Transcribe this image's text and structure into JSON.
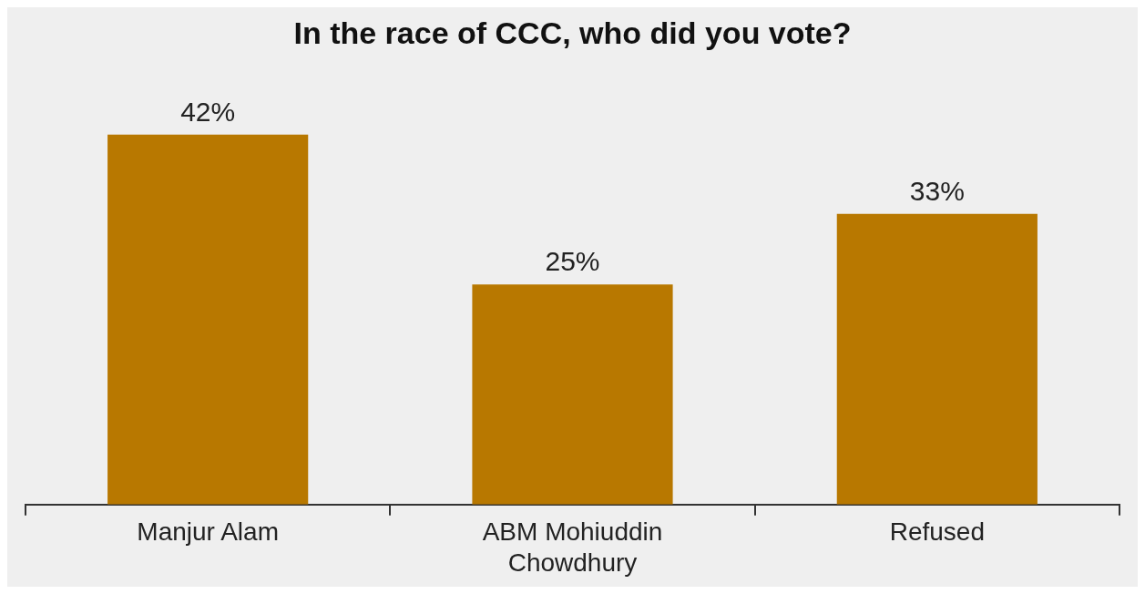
{
  "chart_data": {
    "type": "bar",
    "title": "In the race of CCC, who did you vote?",
    "categories": [
      "Manjur Alam",
      "ABM Mohiuddin Chowdhury",
      "Refused"
    ],
    "values": [
      42,
      25,
      33
    ],
    "value_labels": [
      "42%",
      "25%",
      "33%"
    ],
    "color": "#b87800",
    "grid": false,
    "legend": false
  }
}
